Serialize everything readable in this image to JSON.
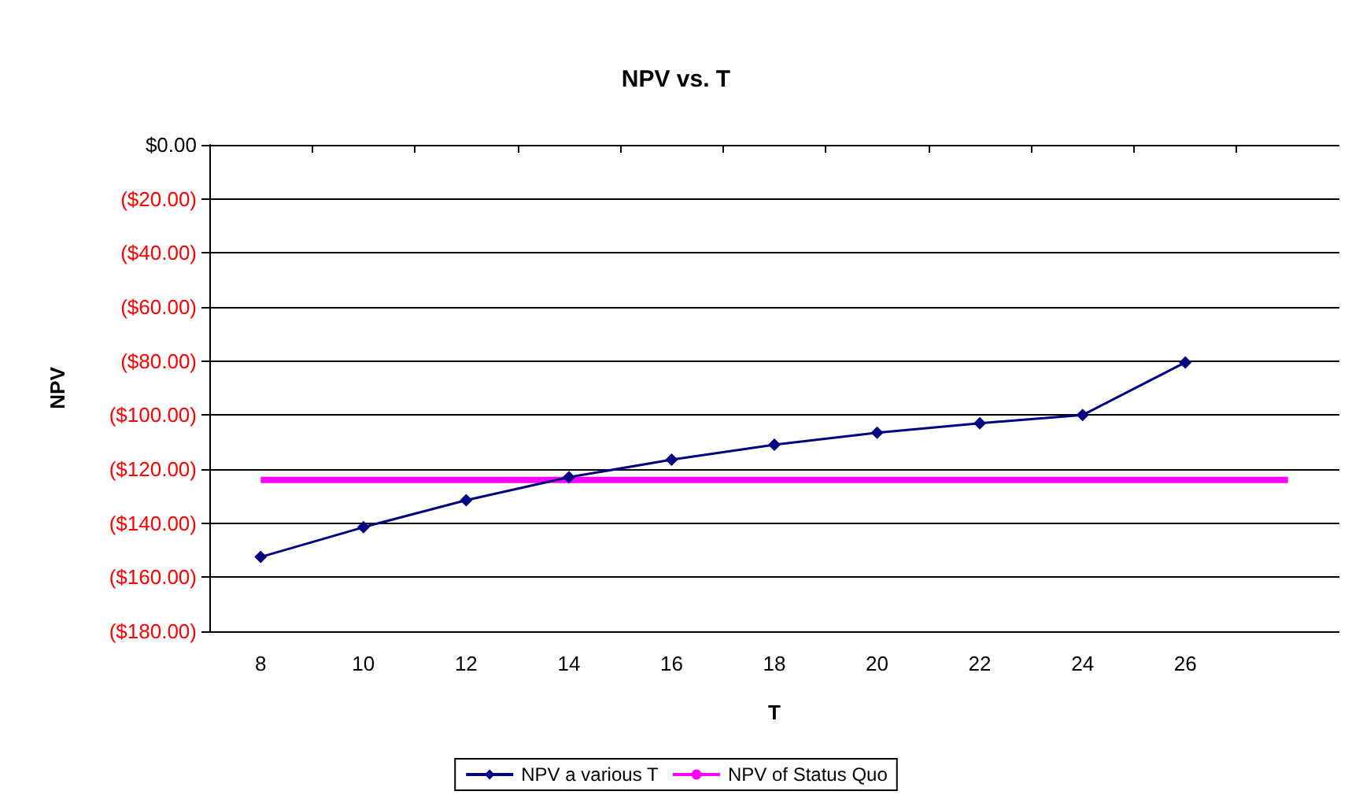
{
  "chart_data": {
    "type": "line",
    "title": "NPV vs. T",
    "xlabel": "T",
    "ylabel": "NPV",
    "categories": [
      "8",
      "10",
      "12",
      "14",
      "16",
      "18",
      "20",
      "22",
      "24",
      "26",
      null
    ],
    "series": [
      {
        "name": "NPV a various T",
        "color": "#000080",
        "marker": "diamond",
        "values": [
          -152.5,
          -141.5,
          -131.5,
          -123,
          -116.5,
          -111,
          -106.5,
          -103,
          -100,
          -80.5,
          null
        ]
      },
      {
        "name": "NPV of Status Quo",
        "color": "#ff00ff",
        "marker": "none",
        "values": [
          -124,
          -124,
          -124,
          -124,
          -124,
          -124,
          -124,
          -124,
          -124,
          -124,
          -124
        ]
      }
    ],
    "ylim": [
      -180,
      0
    ],
    "yticks": [
      {
        "value": -180,
        "label": "($180.00)"
      },
      {
        "value": -160,
        "label": "($160.00)"
      },
      {
        "value": -140,
        "label": "($140.00)"
      },
      {
        "value": -120,
        "label": "($120.00)"
      },
      {
        "value": -100,
        "label": "($100.00)"
      },
      {
        "value": -80,
        "label": "($80.00)"
      },
      {
        "value": -60,
        "label": "($60.00)"
      },
      {
        "value": -40,
        "label": "($40.00)"
      },
      {
        "value": -20,
        "label": "($20.00)"
      },
      {
        "value": 0,
        "label": "$0.00"
      }
    ],
    "grid": "y",
    "legend": "bottom"
  }
}
